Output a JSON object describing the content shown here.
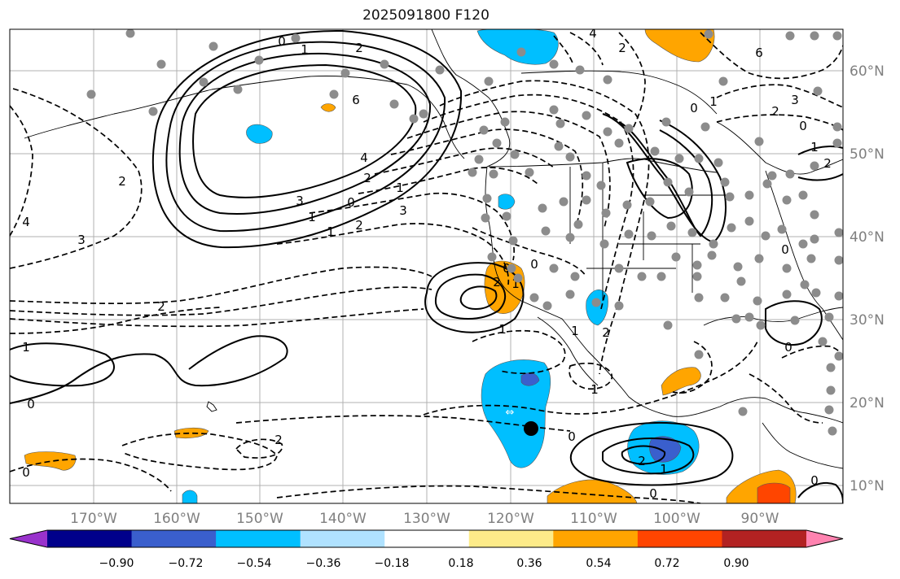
{
  "title": "2025091800 F120",
  "lat_labels": [
    "60°N",
    "50°N",
    "40°N",
    "30°N",
    "20°N",
    "10°N"
  ],
  "lon_labels": [
    "170°W",
    "160°W",
    "150°W",
    "140°W",
    "130°W",
    "120°W",
    "110°W",
    "100°W",
    "90°W"
  ],
  "colorbar": {
    "colors": [
      "#9932cc",
      "#00008b",
      "#3a5fcd",
      "#00bfff",
      "#b0e2ff",
      "#ffffff",
      "#fdeb89",
      "#ffa500",
      "#ff4500",
      "#b22222",
      "#ff83b0"
    ],
    "tick_labels": [
      "−0.90",
      "−0.72",
      "−0.54",
      "−0.36",
      "−0.18",
      "0.18",
      "0.36",
      "0.54",
      "0.72",
      "0.90"
    ]
  },
  "contour_labels": {
    "c1": "0",
    "c2": "1",
    "c3": "2",
    "c4": "6",
    "c5": "4",
    "c6": "3",
    "c7": "2",
    "c8": "1",
    "c9": "0",
    "c10": "1",
    "c11": "2",
    "c12": "3",
    "c13": "1",
    "c14": "3",
    "c15": "2",
    "c16": "4",
    "c17": "2",
    "c18": "1",
    "c19": "0",
    "c20": "2",
    "c21": "0",
    "c22": "2",
    "c23": "1",
    "c24": "1",
    "c25": "0",
    "c26": "0",
    "c27": "2",
    "c28": "1",
    "c29": "0",
    "c30": "0",
    "c31": "1",
    "c32": "1",
    "c33": "0",
    "c34": "3",
    "c35": "2",
    "c36": "0",
    "c37": "6",
    "c38": "1",
    "c39": "2",
    "c40": "0",
    "c41": "0",
    "c42": "0",
    "c43": "1",
    "c44": "2",
    "c45": "4",
    "c46": "2"
  },
  "colors": {
    "grid": "#b0b0b0",
    "contour": "#000000",
    "station_dot": "#8c8c8c",
    "label_gray": "#7f7f7f"
  }
}
